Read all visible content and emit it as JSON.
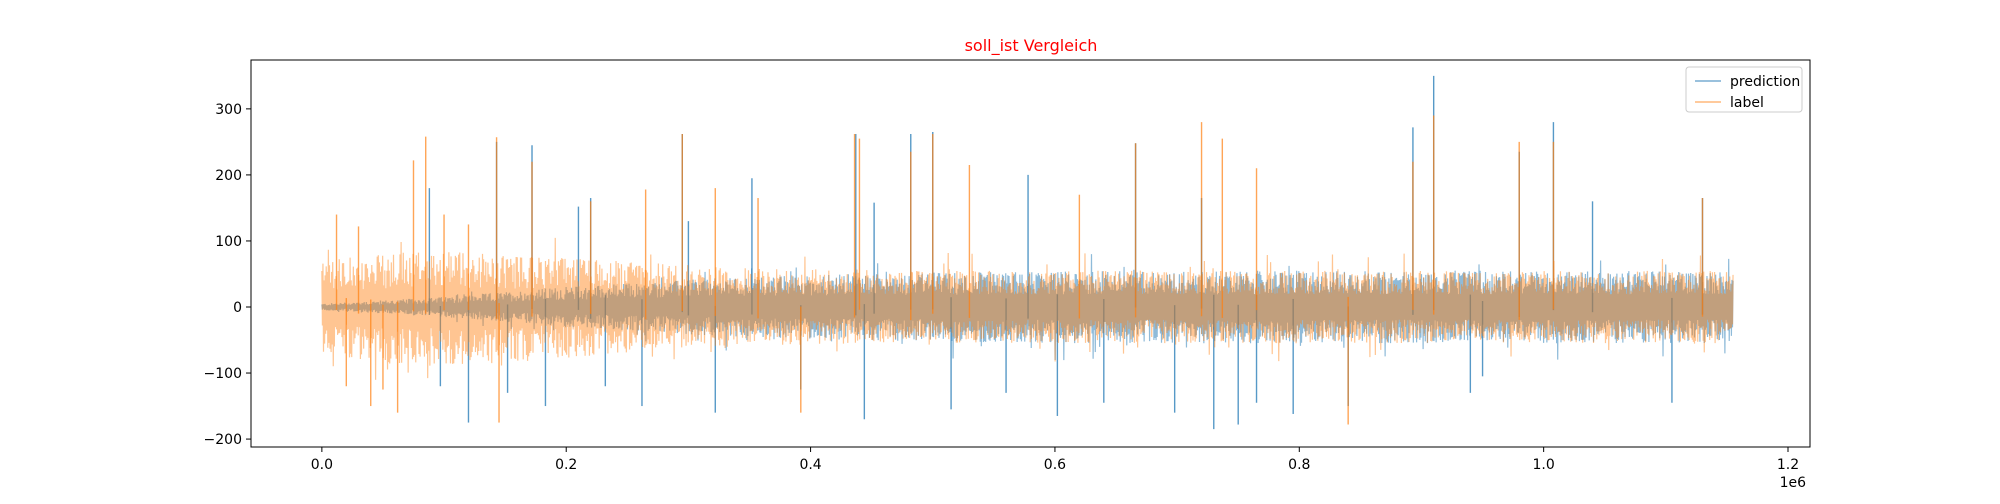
{
  "chart_data": {
    "type": "line",
    "title": "soll_ist Vergleich",
    "title_color": "#ff0000",
    "xlabel": "",
    "ylabel": "",
    "x_offset_label": "1e6",
    "x_scale": 1000000,
    "xlim": [
      -0.058,
      1.218
    ],
    "ylim": [
      -212,
      374
    ],
    "xticks": [
      0.0,
      0.2,
      0.4,
      0.6,
      0.8,
      1.0,
      1.2
    ],
    "xtick_labels": [
      "0.0",
      "0.2",
      "0.4",
      "0.6",
      "0.8",
      "1.0",
      "1.2"
    ],
    "yticks": [
      -200,
      -100,
      0,
      100,
      200,
      300
    ],
    "ytick_labels": [
      "−200",
      "−100",
      "0",
      "100",
      "200",
      "300"
    ],
    "grid": false,
    "legend_position": "top-right",
    "x_range_data": [
      0,
      1155000
    ],
    "series": [
      {
        "name": "prediction",
        "color": "#1f77b4",
        "opacity": 0.5,
        "envelope_upper": [
          5,
          10,
          15,
          22,
          30,
          35,
          40,
          45,
          48,
          50,
          52,
          53,
          54,
          55,
          55,
          55,
          55,
          55,
          55,
          55,
          55,
          55,
          55,
          55,
          55
        ],
        "envelope_lower": [
          -5,
          -10,
          -15,
          -22,
          -30,
          -35,
          -40,
          -45,
          -48,
          -50,
          -52,
          -53,
          -54,
          -55,
          -55,
          -55,
          -55,
          -55,
          -55,
          -55,
          -55,
          -55,
          -55,
          -55,
          -55
        ],
        "spikes": [
          [
            0.088,
            180
          ],
          [
            0.097,
            -120
          ],
          [
            0.12,
            -175
          ],
          [
            0.143,
            250
          ],
          [
            0.152,
            -130
          ],
          [
            0.172,
            245
          ],
          [
            0.183,
            -150
          ],
          [
            0.21,
            152
          ],
          [
            0.22,
            165
          ],
          [
            0.232,
            -120
          ],
          [
            0.262,
            -150
          ],
          [
            0.295,
            262
          ],
          [
            0.3,
            130
          ],
          [
            0.322,
            -160
          ],
          [
            0.352,
            195
          ],
          [
            0.392,
            -125
          ],
          [
            0.437,
            262
          ],
          [
            0.444,
            -170
          ],
          [
            0.452,
            158
          ],
          [
            0.482,
            262
          ],
          [
            0.5,
            265
          ],
          [
            0.515,
            -155
          ],
          [
            0.56,
            -130
          ],
          [
            0.578,
            200
          ],
          [
            0.602,
            -165
          ],
          [
            0.64,
            -145
          ],
          [
            0.666,
            248
          ],
          [
            0.698,
            -160
          ],
          [
            0.72,
            165
          ],
          [
            0.73,
            -185
          ],
          [
            0.75,
            -178
          ],
          [
            0.765,
            -145
          ],
          [
            0.795,
            -162
          ],
          [
            0.84,
            -150
          ],
          [
            0.893,
            272
          ],
          [
            0.91,
            350
          ],
          [
            0.94,
            -130
          ],
          [
            0.95,
            -105
          ],
          [
            0.98,
            235
          ],
          [
            1.008,
            280
          ],
          [
            1.04,
            160
          ],
          [
            1.105,
            -145
          ],
          [
            1.13,
            165
          ]
        ]
      },
      {
        "name": "label",
        "color": "#ff7f0e",
        "opacity": 0.45,
        "envelope_upper": [
          70,
          80,
          85,
          80,
          75,
          70,
          65,
          60,
          58,
          56,
          55,
          55,
          55,
          55,
          55,
          55,
          55,
          55,
          55,
          55,
          55,
          55,
          55,
          55,
          55
        ],
        "envelope_lower": [
          -70,
          -85,
          -90,
          -85,
          -78,
          -72,
          -66,
          -60,
          -58,
          -56,
          -55,
          -55,
          -55,
          -55,
          -55,
          -55,
          -55,
          -55,
          -55,
          -55,
          -55,
          -55,
          -55,
          -55,
          -55
        ],
        "spikes": [
          [
            0.012,
            140
          ],
          [
            0.02,
            -120
          ],
          [
            0.03,
            122
          ],
          [
            0.04,
            -150
          ],
          [
            0.05,
            -125
          ],
          [
            0.062,
            -160
          ],
          [
            0.075,
            222
          ],
          [
            0.085,
            258
          ],
          [
            0.1,
            140
          ],
          [
            0.12,
            125
          ],
          [
            0.143,
            257
          ],
          [
            0.145,
            -175
          ],
          [
            0.172,
            220
          ],
          [
            0.22,
            160
          ],
          [
            0.265,
            178
          ],
          [
            0.295,
            262
          ],
          [
            0.322,
            180
          ],
          [
            0.357,
            165
          ],
          [
            0.392,
            -160
          ],
          [
            0.436,
            262
          ],
          [
            0.44,
            255
          ],
          [
            0.482,
            235
          ],
          [
            0.5,
            262
          ],
          [
            0.53,
            215
          ],
          [
            0.62,
            170
          ],
          [
            0.666,
            248
          ],
          [
            0.72,
            280
          ],
          [
            0.737,
            255
          ],
          [
            0.765,
            210
          ],
          [
            0.84,
            -178
          ],
          [
            0.893,
            220
          ],
          [
            0.91,
            290
          ],
          [
            0.98,
            250
          ],
          [
            1.008,
            250
          ],
          [
            1.13,
            165
          ]
        ]
      }
    ]
  }
}
